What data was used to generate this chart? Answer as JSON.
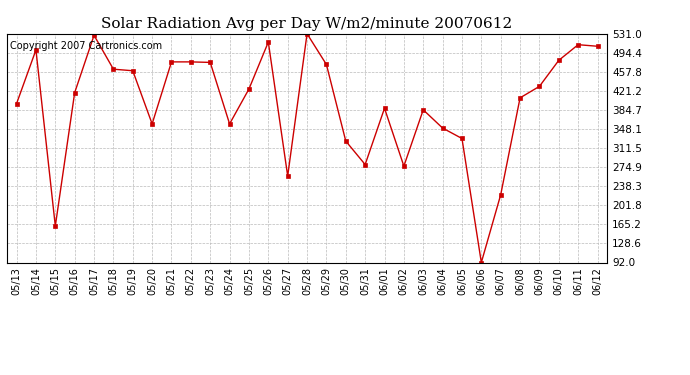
{
  "title": "Solar Radiation Avg per Day W/m2/minute 20070612",
  "copyright_text": "Copyright 2007 Cartronics.com",
  "dates": [
    "05/13",
    "05/14",
    "05/15",
    "05/16",
    "05/17",
    "05/18",
    "05/19",
    "05/20",
    "05/21",
    "05/22",
    "05/23",
    "05/24",
    "05/25",
    "05/26",
    "05/27",
    "05/28",
    "05/29",
    "05/30",
    "05/31",
    "06/01",
    "06/02",
    "06/03",
    "06/04",
    "06/05",
    "06/06",
    "06/07",
    "06/08",
    "06/09",
    "06/10",
    "06/11",
    "06/12"
  ],
  "values": [
    397,
    500,
    162,
    418,
    528,
    463,
    460,
    358,
    477,
    477,
    476,
    358,
    425,
    515,
    258,
    531,
    472,
    325,
    280,
    388,
    277,
    385,
    350,
    330,
    92,
    222,
    408,
    430,
    480,
    510,
    507
  ],
  "ymin": 92.0,
  "ymax": 531.0,
  "yticks": [
    92.0,
    128.6,
    165.2,
    201.8,
    238.3,
    274.9,
    311.5,
    348.1,
    384.7,
    421.2,
    457.8,
    494.4,
    531.0
  ],
  "line_color": "#cc0000",
  "marker_color": "#cc0000",
  "bg_color": "#ffffff",
  "grid_color": "#bbbbbb",
  "title_fontsize": 11,
  "copyright_fontsize": 7,
  "tick_fontsize": 7,
  "ytick_fontsize": 7.5
}
